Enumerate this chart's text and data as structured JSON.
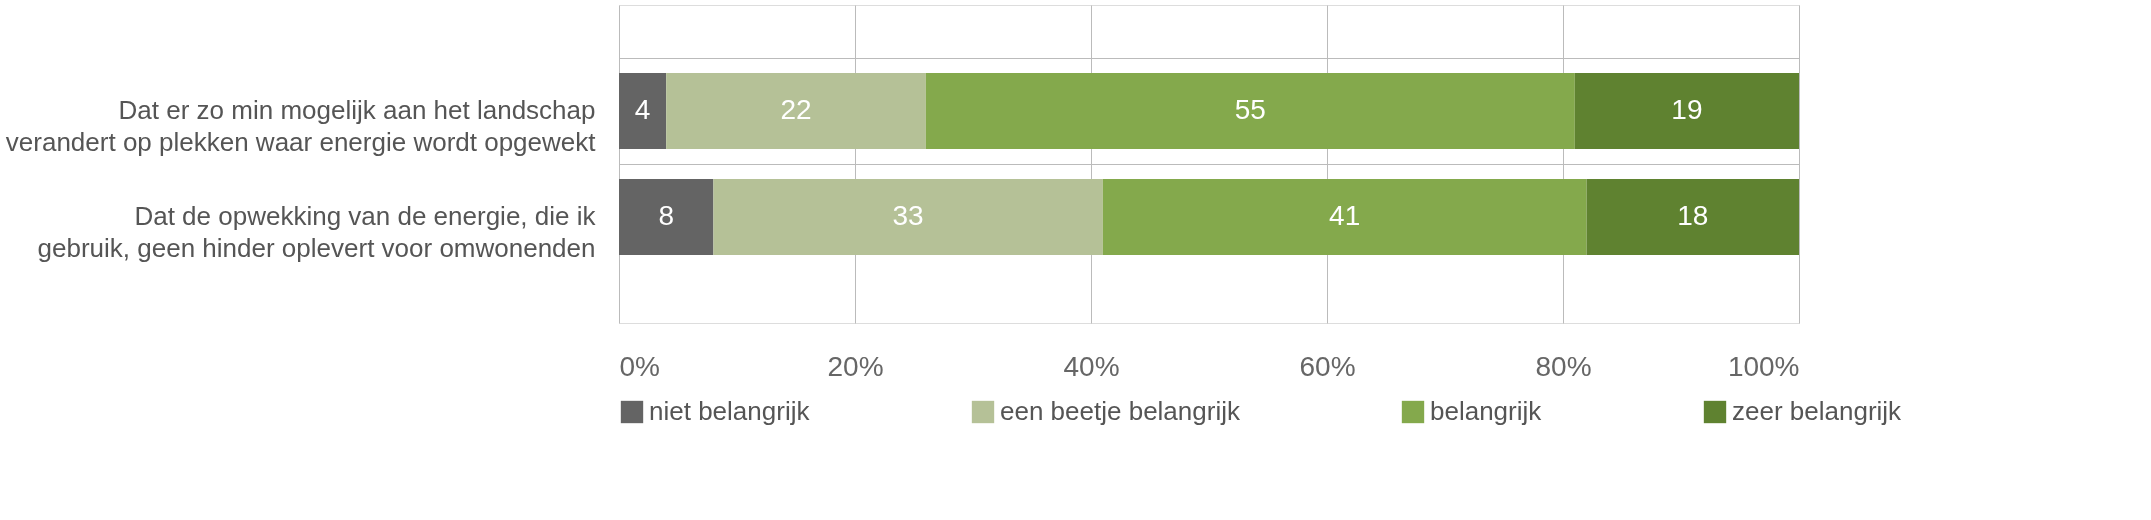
{
  "chart_data": {
    "type": "bar",
    "orientation": "horizontal",
    "stacked": true,
    "data_labels": true,
    "grid": true,
    "legend": "bottom",
    "categories": [
      "Dat er zo min mogelijk aan het landschap verandert op plekken waar energie wordt opgewekt",
      "Dat de opwekking van de energie, die ik gebruik, geen hinder oplevert voor omwonenden"
    ],
    "series": [
      {
        "name": "niet belangrijk",
        "color": "#646464",
        "values": [
          4,
          8
        ]
      },
      {
        "name": "een beetje belangrijk",
        "color": "#b5c197",
        "values": [
          22,
          33
        ]
      },
      {
        "name": "belangrijk",
        "color": "#84a94c",
        "values": [
          55,
          41
        ]
      },
      {
        "name": "zeer belangrijk",
        "color": "#5f8230",
        "values": [
          19,
          18
        ]
      }
    ],
    "xlim": [
      0,
      100
    ],
    "xticks": [
      {
        "value": 0,
        "label": "0%"
      },
      {
        "value": 20,
        "label": "20%"
      },
      {
        "value": 40,
        "label": "40%"
      },
      {
        "value": 60,
        "label": "60%"
      },
      {
        "value": 80,
        "label": "80%"
      },
      {
        "value": 100,
        "label": "100%"
      }
    ]
  }
}
